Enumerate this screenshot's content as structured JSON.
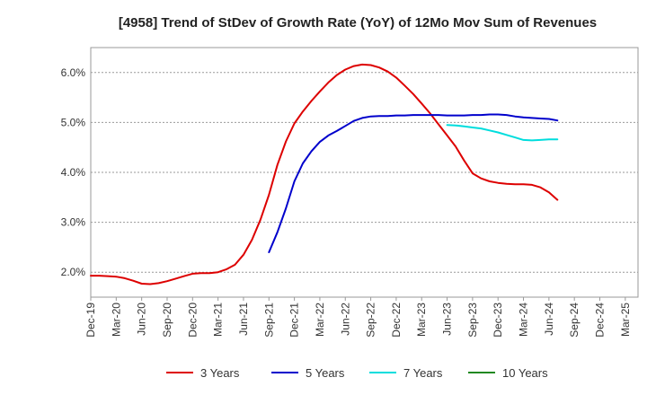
{
  "chart_data": {
    "type": "line",
    "title": "[4958]  Trend of StDev of Growth Rate (YoY) of 12Mo Mov Sum of Revenues",
    "xlabel": "",
    "ylabel": "",
    "ylim": [
      1.5,
      6.5
    ],
    "y_ticks": [
      2.0,
      3.0,
      4.0,
      5.0,
      6.0
    ],
    "y_tick_labels": [
      "2.0%",
      "3.0%",
      "4.0%",
      "5.0%",
      "6.0%"
    ],
    "x_tick_labels": [
      "Dec-19",
      "Mar-20",
      "Jun-20",
      "Sep-20",
      "Dec-20",
      "Mar-21",
      "Jun-21",
      "Sep-21",
      "Dec-21",
      "Mar-22",
      "Jun-22",
      "Sep-22",
      "Dec-22",
      "Mar-23",
      "Jun-23",
      "Sep-23",
      "Dec-23",
      "Mar-24",
      "Jun-24",
      "Sep-24",
      "Dec-24",
      "Mar-25"
    ],
    "grid": true,
    "legend_position": "bottom",
    "series": [
      {
        "name": "3 Years",
        "color": "#dd0000",
        "x": [
          0,
          1,
          2,
          3,
          4,
          5,
          6,
          7,
          8,
          9,
          10,
          11,
          12,
          13,
          14,
          15,
          16,
          17,
          18,
          19,
          20,
          21,
          22,
          23,
          24,
          25,
          26,
          27,
          28,
          29,
          30,
          31,
          32,
          33,
          34,
          35,
          36,
          37,
          38,
          39,
          40,
          41,
          42,
          43,
          44,
          45,
          46,
          47,
          48,
          49,
          50,
          51,
          52,
          53,
          54,
          55,
          56,
          57,
          58,
          59,
          60,
          61,
          62,
          63
        ],
        "values": [
          1.93,
          1.93,
          1.92,
          1.91,
          1.88,
          1.83,
          1.77,
          1.76,
          1.78,
          1.82,
          1.87,
          1.92,
          1.97,
          1.98,
          1.98,
          2.0,
          2.06,
          2.15,
          2.35,
          2.65,
          3.05,
          3.55,
          4.15,
          4.62,
          4.98,
          5.22,
          5.43,
          5.62,
          5.8,
          5.95,
          6.06,
          6.13,
          6.16,
          6.15,
          6.1,
          6.02,
          5.9,
          5.74,
          5.57,
          5.38,
          5.18,
          4.96,
          4.74,
          4.52,
          4.24,
          3.98,
          3.88,
          3.82,
          3.79,
          3.77,
          3.76,
          3.76,
          3.75,
          3.7,
          3.6,
          3.45,
          null,
          null,
          null,
          null,
          null,
          null,
          null,
          null
        ]
      },
      {
        "name": "5 Years",
        "color": "#0000cc",
        "x": [
          0,
          1,
          2,
          3,
          4,
          5,
          6,
          7,
          8,
          9,
          10,
          11,
          12,
          13,
          14,
          15,
          16,
          17,
          18,
          19,
          20,
          21,
          22,
          23,
          24,
          25,
          26,
          27,
          28,
          29,
          30,
          31,
          32,
          33,
          34,
          35,
          36,
          37,
          38,
          39,
          40,
          41,
          42,
          43,
          44,
          45,
          46,
          47,
          48,
          49,
          50,
          51,
          52,
          53,
          54,
          55
        ],
        "values": [
          null,
          null,
          null,
          null,
          null,
          null,
          null,
          null,
          null,
          null,
          null,
          null,
          null,
          null,
          null,
          null,
          null,
          null,
          null,
          null,
          null,
          2.4,
          2.8,
          3.28,
          3.82,
          4.18,
          4.42,
          4.61,
          4.74,
          4.83,
          4.93,
          5.03,
          5.09,
          5.12,
          5.13,
          5.13,
          5.14,
          5.14,
          5.15,
          5.15,
          5.15,
          5.15,
          5.14,
          5.14,
          5.14,
          5.15,
          5.15,
          5.16,
          5.16,
          5.15,
          5.12,
          5.1,
          5.09,
          5.08,
          5.07,
          5.04
        ]
      },
      {
        "name": "7 Years",
        "color": "#00dddd",
        "x": [
          0,
          1,
          2,
          3,
          4,
          5,
          6,
          7,
          8,
          9,
          10,
          11,
          12,
          13,
          14,
          15,
          16,
          17,
          18,
          19,
          20,
          21,
          22,
          23,
          24,
          25,
          26,
          27,
          28,
          29,
          30,
          31,
          32,
          33,
          34,
          35,
          36,
          37,
          38,
          39,
          40,
          41,
          42,
          43,
          44,
          45,
          46,
          47,
          48,
          49,
          50,
          51,
          52,
          53,
          54,
          55
        ],
        "values": [
          null,
          null,
          null,
          null,
          null,
          null,
          null,
          null,
          null,
          null,
          null,
          null,
          null,
          null,
          null,
          null,
          null,
          null,
          null,
          null,
          null,
          null,
          null,
          null,
          null,
          null,
          null,
          null,
          null,
          null,
          null,
          null,
          null,
          null,
          null,
          null,
          null,
          null,
          null,
          null,
          null,
          null,
          4.95,
          4.94,
          4.92,
          4.9,
          4.88,
          4.84,
          4.8,
          4.75,
          4.7,
          4.65,
          4.64,
          4.65,
          4.66,
          4.66
        ]
      },
      {
        "name": "10 Years",
        "color": "#228822",
        "x": [],
        "values": []
      }
    ]
  }
}
